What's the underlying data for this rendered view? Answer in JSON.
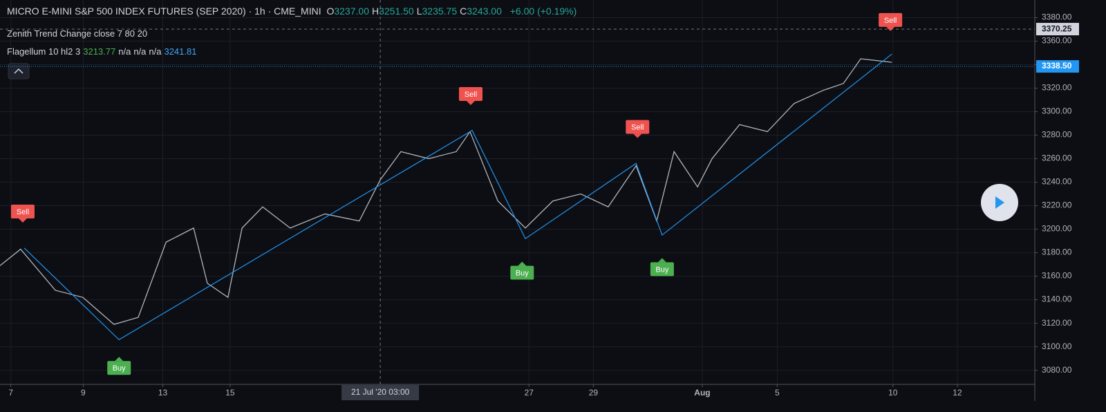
{
  "header": {
    "title": "MICRO E-MINI S&P 500 INDEX FUTURES (SEP 2020) · 1h · CME_MINI",
    "ohlc": [
      {
        "label": "O",
        "value": "3237.00"
      },
      {
        "label": "H",
        "value": "3251.50"
      },
      {
        "label": "L",
        "value": "3235.75"
      },
      {
        "label": "C",
        "value": "3243.00"
      }
    ],
    "change": "+6.00 (+0.19%)",
    "indicators": [
      {
        "name": "Zenith Trend Change close 7 80 20",
        "values": []
      },
      {
        "name": "Flagellum 10 hl2 3",
        "values": [
          "3213.77",
          "n/a",
          "n/a",
          "n/a",
          "3241.81"
        ]
      }
    ]
  },
  "chart_data": {
    "type": "line",
    "x": [
      -0.3,
      0.27,
      1.23,
      1.99,
      2.85,
      3.52,
      4.29,
      5.05,
      5.43,
      6.0,
      6.39,
      6.96,
      7.72,
      8.68,
      9.63,
      10.21,
      10.78,
      11.55,
      12.31,
      12.69,
      13.46,
      14.22,
      14.98,
      15.75,
      16.51,
      17.28,
      17.85,
      18.33,
      18.98,
      19.38,
      20.14,
      20.91,
      21.65,
      22.44,
      23.01,
      23.49,
      24.35
    ],
    "series": [
      {
        "color": "#b2b5be",
        "values": [
          3169,
          3183,
          3148,
          3142,
          3119,
          3125,
          3189,
          3201,
          3154,
          3142,
          3201,
          3219,
          3201,
          3213,
          3207,
          3242,
          3266,
          3260,
          3266,
          3283,
          3224,
          3201,
          3224,
          3230,
          3219,
          3254,
          3207,
          3266,
          3236,
          3260,
          3289,
          3283,
          3307,
          3318,
          3324,
          3345,
          3342
        ]
      }
    ],
    "trend": {
      "color": "#2196f3",
      "x": [
        0.37,
        2.99,
        12.75,
        14.22,
        17.28,
        18.0,
        24.35
      ],
      "values": [
        3184,
        3106,
        3284,
        3192,
        3256,
        3195,
        3349
      ]
    },
    "signals": [
      {
        "label": "Sell",
        "x": 0.33,
        "y": 3215,
        "color": "#ef5350"
      },
      {
        "label": "Buy",
        "x": 2.99,
        "y": 3082,
        "color": "#4caf50"
      },
      {
        "label": "Sell",
        "x": 12.71,
        "y": 3315,
        "color": "#ef5350"
      },
      {
        "label": "Buy",
        "x": 14.13,
        "y": 3163,
        "color": "#4caf50"
      },
      {
        "label": "Sell",
        "x": 17.32,
        "y": 3287,
        "color": "#ef5350"
      },
      {
        "label": "Buy",
        "x": 18.0,
        "y": 3166,
        "color": "#4caf50"
      },
      {
        "label": "Sell",
        "x": 24.31,
        "y": 3378,
        "color": "#ef5350"
      }
    ],
    "xlim": [
      -0.3,
      28.3
    ],
    "ylim": [
      3068,
      3395
    ],
    "xticks": [
      {
        "value": 0,
        "label": "7"
      },
      {
        "value": 2,
        "label": "9"
      },
      {
        "value": 4.2,
        "label": "13"
      },
      {
        "value": 6.06,
        "label": "15"
      },
      {
        "value": 14.32,
        "label": "27"
      },
      {
        "value": 16.1,
        "label": "29"
      },
      {
        "value": 19.11,
        "label": "Aug"
      },
      {
        "value": 21.18,
        "label": "5"
      },
      {
        "value": 24.38,
        "label": "10"
      },
      {
        "value": 26.16,
        "label": "12"
      }
    ],
    "yticks": [
      {
        "value": 3080,
        "label": "3080.00"
      },
      {
        "value": 3100,
        "label": "3100.00"
      },
      {
        "value": 3120,
        "label": "3120.00"
      },
      {
        "value": 3140,
        "label": "3140.00"
      },
      {
        "value": 3160,
        "label": "3160.00"
      },
      {
        "value": 3180,
        "label": "3180.00"
      },
      {
        "value": 3200,
        "label": "3200.00"
      },
      {
        "value": 3220,
        "label": "3220.00"
      },
      {
        "value": 3240,
        "label": "3240.00"
      },
      {
        "value": 3260,
        "label": "3260.00"
      },
      {
        "value": 3280,
        "label": "3280.00"
      },
      {
        "value": 3300,
        "label": "3300.00"
      },
      {
        "value": 3320,
        "label": "3320.00"
      },
      {
        "value": 3340,
        "label": "3340.00"
      },
      {
        "value": 3360,
        "label": "3360.00"
      },
      {
        "value": 3380,
        "label": "3380.00"
      }
    ],
    "crosshair": {
      "x": 10.21,
      "label": "21 Jul '20   03:00",
      "y": 3370.25,
      "y_label": "3370.25"
    },
    "last_price": {
      "value": 3338.5,
      "label": "3338.50",
      "color": "#2196f3"
    },
    "grid": true
  }
}
